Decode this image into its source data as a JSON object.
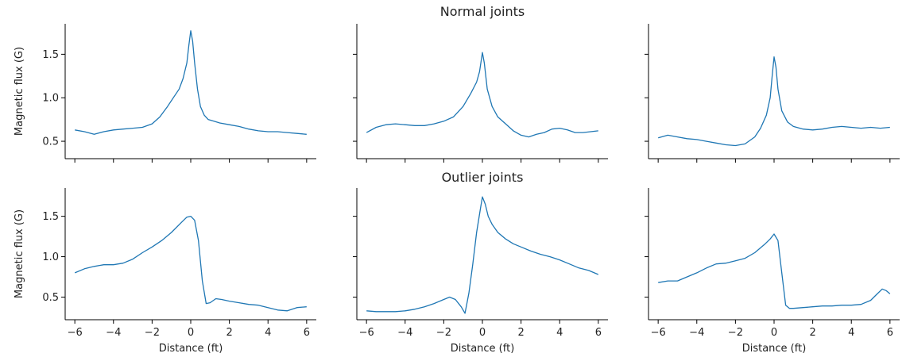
{
  "row_titles": [
    "Normal joints",
    "Outlier joints"
  ],
  "colors": {
    "line": "#1f77b4"
  },
  "chart_data": [
    {
      "type": "line",
      "row": 0,
      "col": 0,
      "title": "Normal joints",
      "xlabel": "",
      "ylabel": "Magnetic flux (G)",
      "xlim": [
        -6.5,
        6.5
      ],
      "ylim": [
        0.3,
        1.85
      ],
      "xticks": [
        -6,
        -4,
        -2,
        0,
        2,
        4,
        6
      ],
      "yticks": [
        0.5,
        1.0,
        1.5
      ],
      "x": [
        -6,
        -5.5,
        -5,
        -4.5,
        -4,
        -3.5,
        -3,
        -2.5,
        -2,
        -1.6,
        -1.2,
        -0.9,
        -0.6,
        -0.4,
        -0.2,
        -0.1,
        0,
        0.1,
        0.2,
        0.35,
        0.5,
        0.7,
        0.9,
        1.2,
        1.5,
        2,
        2.5,
        3,
        3.5,
        4,
        4.5,
        5,
        5.5,
        6
      ],
      "y": [
        0.63,
        0.61,
        0.58,
        0.61,
        0.63,
        0.64,
        0.65,
        0.66,
        0.7,
        0.78,
        0.9,
        1.0,
        1.1,
        1.22,
        1.4,
        1.6,
        1.77,
        1.65,
        1.4,
        1.1,
        0.9,
        0.8,
        0.75,
        0.73,
        0.71,
        0.69,
        0.67,
        0.64,
        0.62,
        0.61,
        0.61,
        0.6,
        0.59,
        0.58
      ]
    },
    {
      "type": "line",
      "row": 0,
      "col": 1,
      "xlabel": "",
      "ylabel": "",
      "xlim": [
        -6.5,
        6.5
      ],
      "ylim": [
        0.3,
        1.85
      ],
      "xticks": [
        -6,
        -4,
        -2,
        0,
        2,
        4,
        6
      ],
      "yticks": [
        0.5,
        1.0,
        1.5
      ],
      "x": [
        -6,
        -5.5,
        -5,
        -4.5,
        -4,
        -3.5,
        -3,
        -2.5,
        -2,
        -1.5,
        -1,
        -0.6,
        -0.3,
        -0.15,
        0,
        0.1,
        0.25,
        0.5,
        0.8,
        1.2,
        1.6,
        2,
        2.4,
        2.8,
        3.2,
        3.6,
        4,
        4.4,
        4.8,
        5.2,
        5.6,
        6
      ],
      "y": [
        0.6,
        0.66,
        0.69,
        0.7,
        0.69,
        0.68,
        0.68,
        0.7,
        0.73,
        0.78,
        0.9,
        1.05,
        1.18,
        1.3,
        1.52,
        1.4,
        1.1,
        0.9,
        0.78,
        0.7,
        0.62,
        0.57,
        0.55,
        0.58,
        0.6,
        0.64,
        0.65,
        0.63,
        0.6,
        0.6,
        0.61,
        0.62
      ]
    },
    {
      "type": "line",
      "row": 0,
      "col": 2,
      "xlabel": "",
      "ylabel": "",
      "xlim": [
        -6.5,
        6.5
      ],
      "ylim": [
        0.3,
        1.85
      ],
      "xticks": [
        -6,
        -4,
        -2,
        0,
        2,
        4,
        6
      ],
      "yticks": [
        0.5,
        1.0,
        1.5
      ],
      "x": [
        -6,
        -5.5,
        -5,
        -4.5,
        -4,
        -3.5,
        -3,
        -2.5,
        -2,
        -1.5,
        -1,
        -0.7,
        -0.4,
        -0.2,
        -0.1,
        0,
        0.1,
        0.2,
        0.4,
        0.7,
        1,
        1.5,
        2,
        2.5,
        3,
        3.5,
        4,
        4.5,
        5,
        5.5,
        6
      ],
      "y": [
        0.54,
        0.57,
        0.55,
        0.53,
        0.52,
        0.5,
        0.48,
        0.46,
        0.45,
        0.47,
        0.55,
        0.65,
        0.8,
        1.0,
        1.25,
        1.47,
        1.35,
        1.1,
        0.85,
        0.72,
        0.67,
        0.64,
        0.63,
        0.64,
        0.66,
        0.67,
        0.66,
        0.65,
        0.66,
        0.65,
        0.66
      ]
    },
    {
      "type": "line",
      "row": 1,
      "col": 0,
      "title": "Outlier joints",
      "xlabel": "Distance (ft)",
      "ylabel": "Magnetic flux (G)",
      "xlim": [
        -6.5,
        6.5
      ],
      "ylim": [
        0.22,
        1.85
      ],
      "xticks": [
        -6,
        -4,
        -2,
        0,
        2,
        4,
        6
      ],
      "yticks": [
        0.5,
        1.0,
        1.5
      ],
      "x": [
        -6,
        -5.5,
        -5,
        -4.5,
        -4,
        -3.5,
        -3,
        -2.5,
        -2,
        -1.5,
        -1,
        -0.5,
        -0.2,
        0,
        0.2,
        0.4,
        0.6,
        0.8,
        1,
        1.3,
        1.6,
        2,
        2.5,
        3,
        3.5,
        4,
        4.5,
        5,
        5.5,
        6
      ],
      "y": [
        0.8,
        0.85,
        0.88,
        0.9,
        0.9,
        0.92,
        0.97,
        1.05,
        1.12,
        1.2,
        1.3,
        1.42,
        1.49,
        1.5,
        1.45,
        1.2,
        0.7,
        0.42,
        0.43,
        0.48,
        0.47,
        0.45,
        0.43,
        0.41,
        0.4,
        0.37,
        0.34,
        0.33,
        0.37,
        0.38
      ]
    },
    {
      "type": "line",
      "row": 1,
      "col": 1,
      "xlabel": "Distance (ft)",
      "ylabel": "",
      "xlim": [
        -6.5,
        6.5
      ],
      "ylim": [
        0.22,
        1.85
      ],
      "xticks": [
        -6,
        -4,
        -2,
        0,
        2,
        4,
        6
      ],
      "yticks": [
        0.5,
        1.0,
        1.5
      ],
      "x": [
        -6,
        -5.5,
        -5,
        -4.5,
        -4,
        -3.5,
        -3,
        -2.5,
        -2,
        -1.7,
        -1.4,
        -1.1,
        -0.9,
        -0.7,
        -0.5,
        -0.3,
        -0.1,
        0,
        0.15,
        0.3,
        0.5,
        0.8,
        1.2,
        1.6,
        2,
        2.5,
        3,
        3.5,
        4,
        4.5,
        5,
        5.5,
        6
      ],
      "y": [
        0.33,
        0.32,
        0.32,
        0.32,
        0.33,
        0.35,
        0.38,
        0.42,
        0.47,
        0.5,
        0.47,
        0.38,
        0.3,
        0.55,
        0.9,
        1.3,
        1.6,
        1.74,
        1.65,
        1.5,
        1.4,
        1.3,
        1.22,
        1.16,
        1.12,
        1.07,
        1.03,
        1.0,
        0.96,
        0.91,
        0.86,
        0.83,
        0.78
      ]
    },
    {
      "type": "line",
      "row": 1,
      "col": 2,
      "xlabel": "Distance (ft)",
      "ylabel": "",
      "xlim": [
        -6.5,
        6.5
      ],
      "ylim": [
        0.22,
        1.85
      ],
      "xticks": [
        -6,
        -4,
        -2,
        0,
        2,
        4,
        6
      ],
      "yticks": [
        0.5,
        1.0,
        1.5
      ],
      "x": [
        -6,
        -5.5,
        -5,
        -4.5,
        -4,
        -3.5,
        -3,
        -2.5,
        -2,
        -1.5,
        -1,
        -0.5,
        -0.2,
        0,
        0.2,
        0.4,
        0.6,
        0.8,
        1,
        1.5,
        2,
        2.5,
        3,
        3.5,
        4,
        4.5,
        5,
        5.3,
        5.6,
        5.8,
        6
      ],
      "y": [
        0.68,
        0.7,
        0.7,
        0.75,
        0.8,
        0.86,
        0.91,
        0.92,
        0.95,
        0.98,
        1.05,
        1.15,
        1.22,
        1.28,
        1.2,
        0.8,
        0.4,
        0.36,
        0.36,
        0.37,
        0.38,
        0.39,
        0.39,
        0.4,
        0.4,
        0.41,
        0.46,
        0.53,
        0.6,
        0.58,
        0.54
      ]
    }
  ]
}
